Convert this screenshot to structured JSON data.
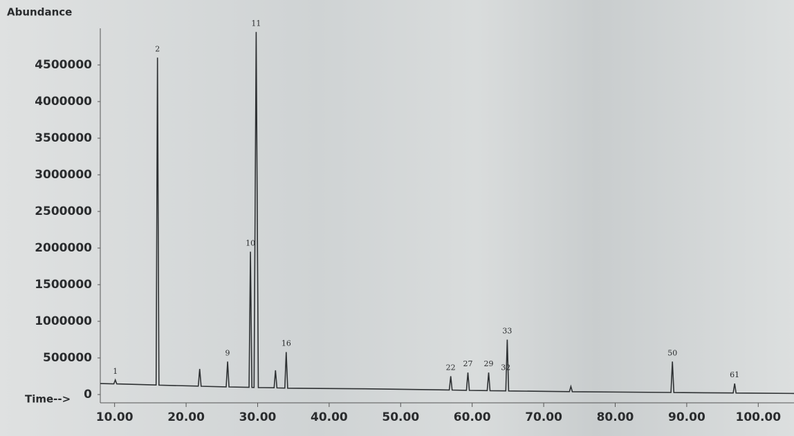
{
  "chart_data": {
    "type": "line",
    "ylabel": "Abundance",
    "xlabel": "Time-->",
    "x": [
      8,
      9.9,
      10.1,
      10.3,
      15.8,
      16.0,
      16.2,
      21.7,
      21.9,
      22.1,
      25.6,
      25.8,
      26.0,
      28.8,
      29.0,
      29.2,
      29.5,
      29.8,
      30.1,
      32.3,
      32.5,
      32.7,
      33.8,
      34.0,
      34.2,
      45,
      56.8,
      57.0,
      57.2,
      59.2,
      59.4,
      59.6,
      62.1,
      62.3,
      62.5,
      64.7,
      64.9,
      65.1,
      73.6,
      73.8,
      74.0,
      87.8,
      88.0,
      88.2,
      96.5,
      96.7,
      96.9,
      105
    ],
    "series": [
      {
        "color": "#2e3133",
        "values": [
          150000,
          145000,
          200000,
          145000,
          130000,
          4600000,
          128000,
          115000,
          350000,
          113000,
          105000,
          450000,
          104000,
          98000,
          1950000,
          97000,
          96000,
          4950000,
          95000,
          92000,
          330000,
          91000,
          88000,
          580000,
          87000,
          78000,
          62000,
          250000,
          61000,
          58000,
          300000,
          57000,
          54000,
          300000,
          53000,
          50000,
          750000,
          49000,
          40000,
          110000,
          39000,
          28000,
          450000,
          27000,
          22000,
          150000,
          21000,
          15000
        ]
      }
    ],
    "annotations": [
      {
        "text": "1",
        "x": 10.1,
        "y": 200000
      },
      {
        "text": "2",
        "x": 16.0,
        "y": 4600000
      },
      {
        "text": "9",
        "x": 25.8,
        "y": 450000
      },
      {
        "text": "10",
        "x": 29.0,
        "y": 1950000
      },
      {
        "text": "11",
        "x": 29.8,
        "y": 4950000
      },
      {
        "text": "16",
        "x": 34.0,
        "y": 580000
      },
      {
        "text": "22",
        "x": 57.0,
        "y": 250000
      },
      {
        "text": "27",
        "x": 59.4,
        "y": 300000
      },
      {
        "text": "29",
        "x": 62.3,
        "y": 300000
      },
      {
        "text": "32",
        "x": 64.7,
        "y": 250000
      },
      {
        "text": "33",
        "x": 64.9,
        "y": 750000
      },
      {
        "text": "50",
        "x": 88.0,
        "y": 450000
      },
      {
        "text": "61",
        "x": 96.7,
        "y": 150000
      }
    ],
    "xlim": [
      8,
      105
    ],
    "xticks": [
      {
        "value": 10,
        "label": "10.00"
      },
      {
        "value": 20,
        "label": "20.00"
      },
      {
        "value": 30,
        "label": "30.00"
      },
      {
        "value": 40,
        "label": "40.00"
      },
      {
        "value": 50,
        "label": "50.00"
      },
      {
        "value": 60,
        "label": "60.00"
      },
      {
        "value": 70,
        "label": "70.00"
      },
      {
        "value": 80,
        "label": "80.00"
      },
      {
        "value": 90,
        "label": "90.00"
      },
      {
        "value": 100,
        "label": "100.00"
      }
    ],
    "ylim": [
      0,
      5000000
    ],
    "yticks": [
      0,
      500000,
      1000000,
      1500000,
      2000000,
      2500000,
      3000000,
      3500000,
      4000000,
      4500000
    ],
    "grid": false
  }
}
